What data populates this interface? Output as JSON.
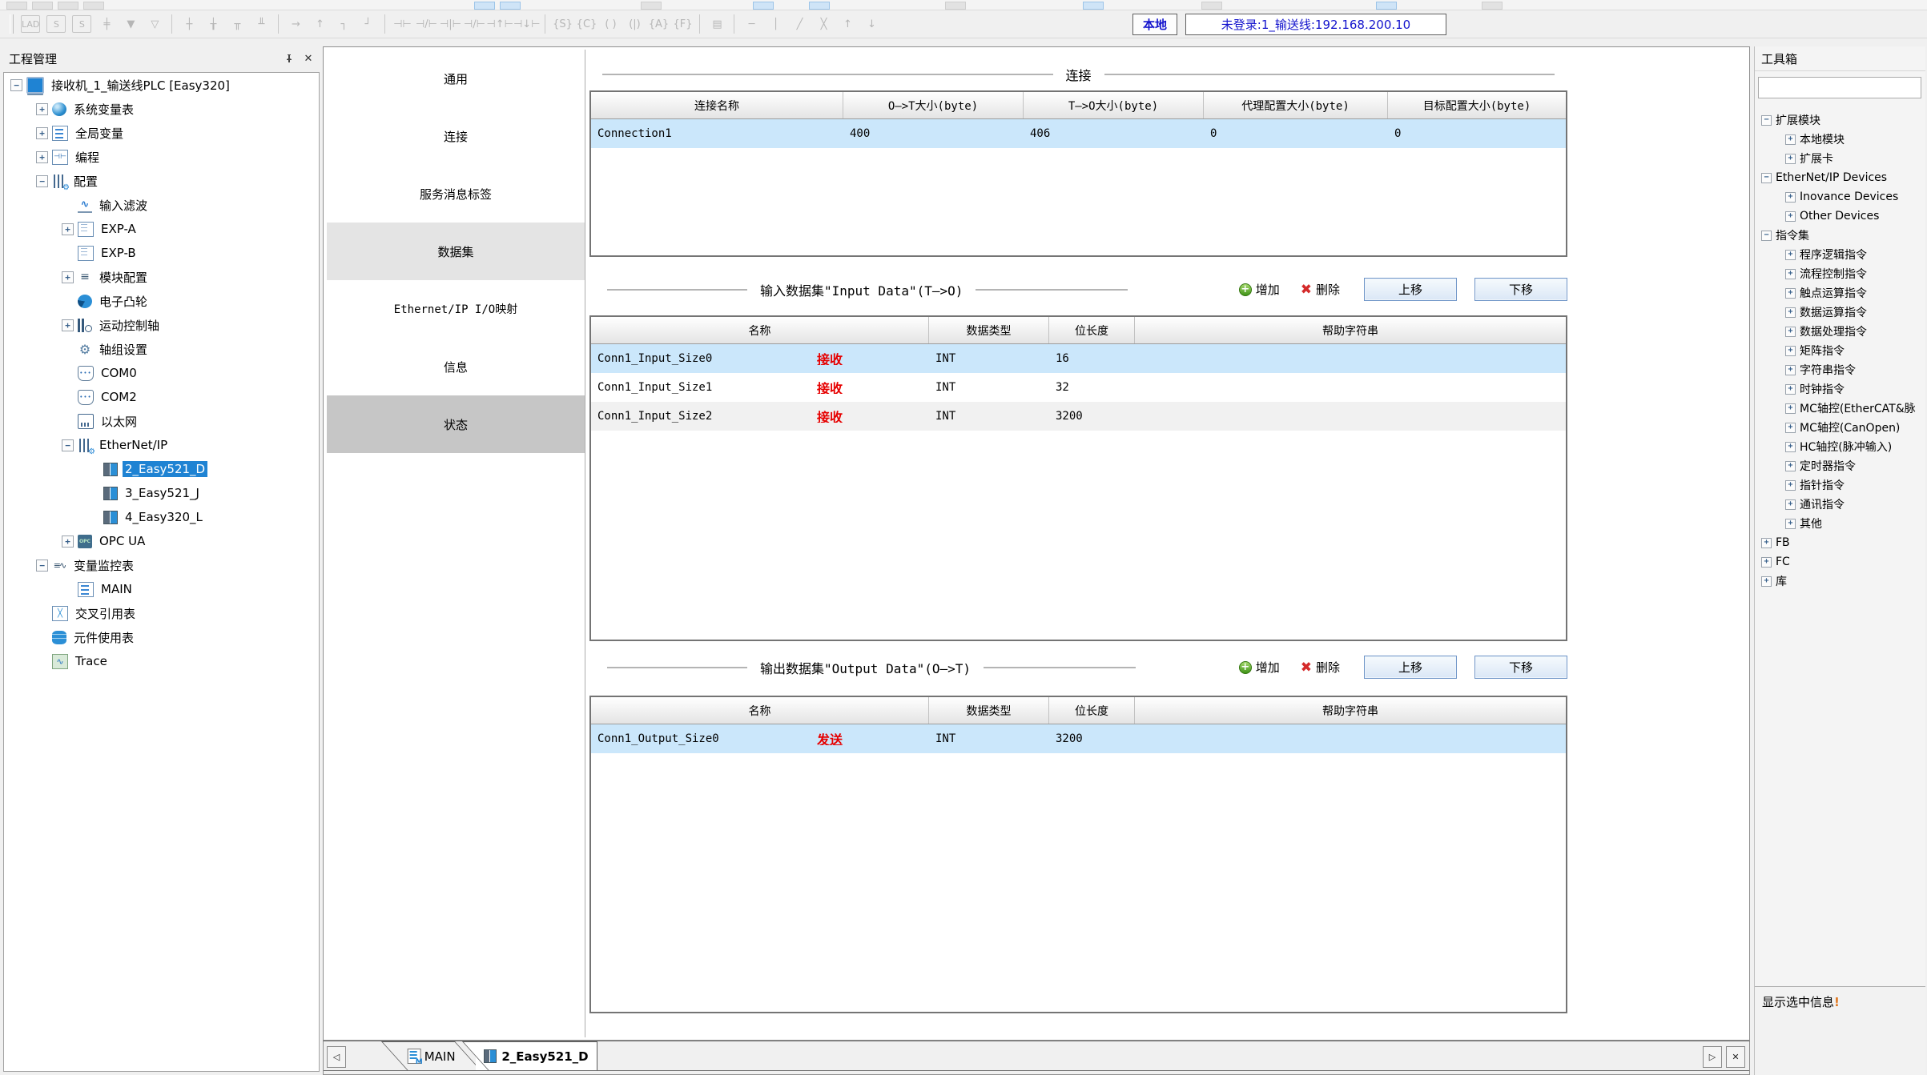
{
  "colors": {
    "accent_blue": "#1f83d3",
    "row_selected": "#cbe7fb",
    "direction_red": "#e60000",
    "link_blue": "#1414cd",
    "tab_selected_gray": "#e4e4e4",
    "tab_dark_gray": "#c6c6c6"
  },
  "toolbar": {
    "local_button": "本地",
    "login_status": "未登录:1_输送线:192.168.200.10",
    "icons": [
      {
        "name": "lad-editor-icon",
        "glyph": "LAD",
        "boxed": true
      },
      {
        "name": "sfc-block-icon",
        "glyph": "S",
        "boxed": true
      },
      {
        "name": "sfc-step-icon",
        "glyph": "S",
        "boxed": true
      },
      {
        "name": "insert-node-icon",
        "glyph": "╪"
      },
      {
        "name": "insert-down-solid-icon",
        "glyph": "▼"
      },
      {
        "name": "insert-down-hollow-icon",
        "glyph": "▽"
      },
      {
        "name": "separator"
      },
      {
        "name": "insert-rung-icon",
        "glyph": "┼"
      },
      {
        "name": "insert-rung-below-icon",
        "glyph": "╁"
      },
      {
        "name": "insert-row-icon",
        "glyph": "╥"
      },
      {
        "name": "delete-row-icon",
        "glyph": "╨"
      },
      {
        "name": "separator"
      },
      {
        "name": "line-right-icon",
        "glyph": "→"
      },
      {
        "name": "line-up-icon",
        "glyph": "↑"
      },
      {
        "name": "line-corner-down-icon",
        "glyph": "┐"
      },
      {
        "name": "line-corner-up-icon",
        "glyph": "┘"
      },
      {
        "name": "separator"
      },
      {
        "name": "contact-no-icon",
        "glyph": "⊣⊢"
      },
      {
        "name": "contact-nc-icon",
        "glyph": "⊣/⊢"
      },
      {
        "name": "contact-parallel-no-icon",
        "glyph": "⊣|⊢"
      },
      {
        "name": "contact-parallel-nc-icon",
        "glyph": "⊣∕⊢"
      },
      {
        "name": "contact-rising-icon",
        "glyph": "⊣↑⊢"
      },
      {
        "name": "contact-falling-icon",
        "glyph": "⊣↓⊢"
      },
      {
        "name": "separator"
      },
      {
        "name": "coil-set-icon",
        "glyph": "{S}"
      },
      {
        "name": "coil-reset-icon",
        "glyph": "{C}"
      },
      {
        "name": "coil-out-icon",
        "glyph": "( )"
      },
      {
        "name": "coil-not-icon",
        "glyph": "(|)"
      },
      {
        "name": "coil-a-icon",
        "glyph": "{A}"
      },
      {
        "name": "coil-f-icon",
        "glyph": "{F}"
      },
      {
        "name": "separator"
      },
      {
        "name": "function-block-icon",
        "glyph": "▤"
      },
      {
        "name": "separator"
      },
      {
        "name": "hline-icon",
        "glyph": "─"
      },
      {
        "name": "vline-icon",
        "glyph": "│"
      },
      {
        "name": "delete-line-icon",
        "glyph": "╱"
      },
      {
        "name": "delete-cross-icon",
        "glyph": "╳"
      },
      {
        "name": "move-up-line-icon",
        "glyph": "↑"
      },
      {
        "name": "move-down-line-icon",
        "glyph": "↓"
      }
    ]
  },
  "project_panel": {
    "title": "工程管理",
    "tree": [
      {
        "id": "plc-device",
        "label": "接收机_1_输送线PLC [Easy320]",
        "level": 0,
        "expander": "minus",
        "icon": "monitor"
      },
      {
        "id": "system-variable-table",
        "label": "系统变量表",
        "level": 1,
        "expander": "plus",
        "icon": "globe"
      },
      {
        "id": "global-variables",
        "label": "全局变量",
        "level": 1,
        "expander": "plus",
        "icon": "doc"
      },
      {
        "id": "programming",
        "label": "编程",
        "level": 1,
        "expander": "plus",
        "icon": "contact"
      },
      {
        "id": "configuration",
        "label": "配置",
        "level": 1,
        "expander": "minus",
        "icon": "sliders"
      },
      {
        "id": "input-filter",
        "label": "输入滤波",
        "level": 2,
        "expander": "none",
        "icon": "wave"
      },
      {
        "id": "exp-a",
        "label": "EXP-A",
        "level": 2,
        "expander": "plus",
        "icon": "card"
      },
      {
        "id": "exp-b",
        "label": "EXP-B",
        "level": 2,
        "expander": "none",
        "icon": "card"
      },
      {
        "id": "module-config",
        "label": "模块配置",
        "level": 2,
        "expander": "plus",
        "icon": "modcfg"
      },
      {
        "id": "electronic-cam",
        "label": "电子凸轮",
        "level": 2,
        "expander": "none",
        "icon": "cam"
      },
      {
        "id": "motion-control-axis",
        "label": "运动控制轴",
        "level": 2,
        "expander": "plus",
        "icon": "motion"
      },
      {
        "id": "axis-group-settings",
        "label": "轴组设置",
        "level": 2,
        "expander": "none",
        "icon": "gear"
      },
      {
        "id": "com0",
        "label": "COM0",
        "level": 2,
        "expander": "none",
        "icon": "com"
      },
      {
        "id": "com2",
        "label": "COM2",
        "level": 2,
        "expander": "none",
        "icon": "com"
      },
      {
        "id": "ethernet",
        "label": "以太网",
        "level": 2,
        "expander": "none",
        "icon": "eth"
      },
      {
        "id": "ethernet-ip",
        "label": "EtherNet/IP",
        "level": 2,
        "expander": "minus",
        "icon": "sliders"
      },
      {
        "id": "device-2-easy521-d",
        "label": "2_Easy521_D",
        "level": 3,
        "expander": "none",
        "icon": "module",
        "selected": true
      },
      {
        "id": "device-3-easy521-j",
        "label": "3_Easy521_J",
        "level": 3,
        "expander": "none",
        "icon": "module"
      },
      {
        "id": "device-4-easy320-l",
        "label": "4_Easy320_L",
        "level": 3,
        "expander": "none",
        "icon": "module"
      },
      {
        "id": "opc-ua",
        "label": "OPC UA",
        "level": 2,
        "expander": "plus",
        "icon": "opc"
      },
      {
        "id": "variable-watch-table",
        "label": "变量监控表",
        "level": 1,
        "expander": "minus",
        "icon": "watch"
      },
      {
        "id": "main-watch-table",
        "label": "MAIN",
        "level": 2,
        "expander": "none",
        "icon": "doc"
      },
      {
        "id": "cross-reference-table",
        "label": "交叉引用表",
        "level": 1,
        "expander": "none",
        "icon": "cross"
      },
      {
        "id": "element-usage-table",
        "label": "元件使用表",
        "level": 1,
        "expander": "none",
        "icon": "db"
      },
      {
        "id": "trace",
        "label": "Trace",
        "level": 1,
        "expander": "none",
        "icon": "trace"
      }
    ]
  },
  "device_tabs": [
    {
      "id": "general",
      "label": "通用"
    },
    {
      "id": "connection",
      "label": "连接"
    },
    {
      "id": "service-message-tag",
      "label": "服务消息标签"
    },
    {
      "id": "dataset",
      "label": "数据集",
      "highlight": "selected"
    },
    {
      "id": "eip-io-mapping",
      "label": "Ethernet/IP I/O映射",
      "mono": true
    },
    {
      "id": "info",
      "label": "信息"
    },
    {
      "id": "status",
      "label": "状态",
      "highlight": "dark"
    }
  ],
  "connection_section": {
    "title": "连接",
    "columns": [
      "连接名称",
      "O—>T大小(byte)",
      "T—>O大小(byte)",
      "代理配置大小(byte)",
      "目标配置大小(byte)"
    ],
    "rows": [
      {
        "name": "Connection1",
        "o_to_t": "400",
        "t_to_o": "406",
        "proxy_config": "0",
        "target_config": "0",
        "selected": true
      }
    ]
  },
  "input_section": {
    "title": "输入数据集\"Input Data\"(T—>O)",
    "add_label": "增加",
    "delete_label": "删除",
    "move_up_label": "上移",
    "move_down_label": "下移",
    "columns": [
      "名称",
      "数据类型",
      "位长度",
      "帮助字符串"
    ],
    "rows": [
      {
        "name": "Conn1_Input_Size0",
        "direction": "接收",
        "data_type": "INT",
        "bit_length": "16",
        "help": "",
        "selected": true
      },
      {
        "name": "Conn1_Input_Size1",
        "direction": "接收",
        "data_type": "INT",
        "bit_length": "32",
        "help": ""
      },
      {
        "name": "Conn1_Input_Size2",
        "direction": "接收",
        "data_type": "INT",
        "bit_length": "3200",
        "help": "",
        "alt": true
      }
    ]
  },
  "output_section": {
    "title": "输出数据集\"Output Data\"(O—>T)",
    "add_label": "增加",
    "delete_label": "删除",
    "move_up_label": "上移",
    "move_down_label": "下移",
    "columns": [
      "名称",
      "数据类型",
      "位长度",
      "帮助字符串"
    ],
    "rows": [
      {
        "name": "Conn1_Output_Size0",
        "direction": "发送",
        "data_type": "INT",
        "bit_length": "3200",
        "help": "",
        "selected": true
      }
    ]
  },
  "bottom_tabs": {
    "scroll_left": "◁",
    "scroll_right": "▷",
    "close": "✕",
    "tabs": [
      {
        "id": "main",
        "label": "MAIN",
        "icon": "doc"
      },
      {
        "id": "2-easy521-d",
        "label": "2_Easy521_D",
        "icon": "module",
        "active": true
      }
    ]
  },
  "toolbox_panel": {
    "title": "工具箱",
    "info_text": "显示选中信息",
    "info_mark": "!",
    "tree": [
      {
        "id": "expansion-modules",
        "label": "扩展模块",
        "level": 0,
        "expander": "minus"
      },
      {
        "id": "local-modules",
        "label": "本地模块",
        "level": 1,
        "expander": "plus"
      },
      {
        "id": "expansion-cards",
        "label": "扩展卡",
        "level": 1,
        "expander": "plus"
      },
      {
        "id": "ethernet-ip-devices",
        "label": "EtherNet/IP Devices",
        "level": 0,
        "expander": "minus"
      },
      {
        "id": "inovance-devices",
        "label": "Inovance Devices",
        "level": 1,
        "expander": "plus"
      },
      {
        "id": "other-devices",
        "label": "Other Devices",
        "level": 1,
        "expander": "plus"
      },
      {
        "id": "instruction-set",
        "label": "指令集",
        "level": 0,
        "expander": "minus"
      },
      {
        "id": "program-logic-instructions",
        "label": "程序逻辑指令",
        "level": 1,
        "expander": "plus"
      },
      {
        "id": "flow-control-instructions",
        "label": "流程控制指令",
        "level": 1,
        "expander": "plus"
      },
      {
        "id": "contact-operation-instructions",
        "label": "触点运算指令",
        "level": 1,
        "expander": "plus"
      },
      {
        "id": "data-operation-instructions",
        "label": "数据运算指令",
        "level": 1,
        "expander": "plus"
      },
      {
        "id": "data-processing-instructions",
        "label": "数据处理指令",
        "level": 1,
        "expander": "plus"
      },
      {
        "id": "matrix-instructions",
        "label": "矩阵指令",
        "level": 1,
        "expander": "plus"
      },
      {
        "id": "string-instructions",
        "label": "字符串指令",
        "level": 1,
        "expander": "plus"
      },
      {
        "id": "clock-instructions",
        "label": "时钟指令",
        "level": 1,
        "expander": "plus"
      },
      {
        "id": "mc-axis-ethercat",
        "label": "MC轴控(EtherCAT&脉",
        "level": 1,
        "expander": "plus"
      },
      {
        "id": "mc-axis-canopen",
        "label": "MC轴控(CanOpen)",
        "level": 1,
        "expander": "plus"
      },
      {
        "id": "hc-axis-pulse",
        "label": "HC轴控(脉冲输入)",
        "level": 1,
        "expander": "plus"
      },
      {
        "id": "timer-instructions",
        "label": "定时器指令",
        "level": 1,
        "expander": "plus"
      },
      {
        "id": "pointer-instructions",
        "label": "指针指令",
        "level": 1,
        "expander": "plus"
      },
      {
        "id": "communication-instructions",
        "label": "通讯指令",
        "level": 1,
        "expander": "plus"
      },
      {
        "id": "others",
        "label": "其他",
        "level": 1,
        "expander": "plus"
      },
      {
        "id": "fb",
        "label": "FB",
        "level": 0,
        "expander": "plus"
      },
      {
        "id": "fc",
        "label": "FC",
        "level": 0,
        "expander": "plus"
      },
      {
        "id": "library",
        "label": "库",
        "level": 0,
        "expander": "plus"
      }
    ]
  }
}
